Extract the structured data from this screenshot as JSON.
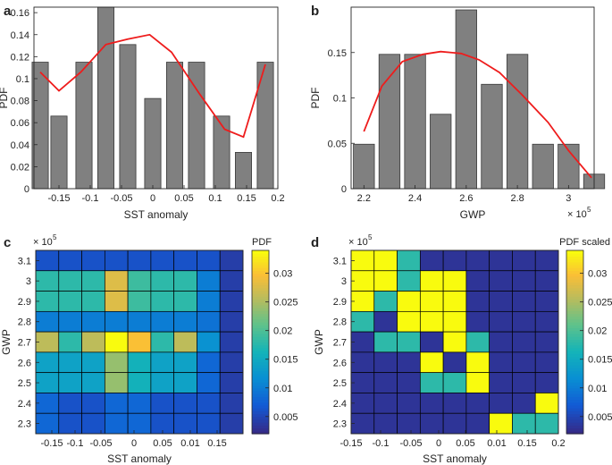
{
  "chart_data": [
    {
      "panel": "a",
      "type": "bar",
      "xlabel": "SST anomaly",
      "ylabel": "PDF",
      "xlim": [
        -0.19,
        0.2
      ],
      "ylim": [
        0,
        0.165
      ],
      "xticks": [
        -0.15,
        -0.1,
        -0.05,
        0,
        0.05,
        0.1,
        0.15,
        0.2
      ],
      "xtick_labels": [
        "-0.15",
        "-0.1",
        "-0.05",
        "0",
        "0.05",
        "0.1",
        "0.15",
        "0.2"
      ],
      "yticks": [
        0,
        0.02,
        0.04,
        0.06,
        0.08,
        0.1,
        0.12,
        0.14,
        0.16
      ],
      "ytick_labels": [
        "0",
        "0.02",
        "0.04",
        "0.06",
        "0.08",
        "0.1",
        "0.12",
        "0.14",
        "0.16"
      ],
      "bar_x": [
        -0.18,
        -0.15,
        -0.11,
        -0.075,
        -0.04,
        0,
        0.035,
        0.07,
        0.11,
        0.145,
        0.18
      ],
      "bar_width": 0.026,
      "values": [
        0.115,
        0.066,
        0.115,
        0.165,
        0.131,
        0.082,
        0.115,
        0.115,
        0.066,
        0.033,
        0.115
      ],
      "line": {
        "x": [
          -0.18,
          -0.15,
          -0.115,
          -0.075,
          -0.04,
          -0.005,
          0.03,
          0.075,
          0.115,
          0.145,
          0.18
        ],
        "y": [
          0.106,
          0.089,
          0.106,
          0.131,
          0.136,
          0.14,
          0.124,
          0.086,
          0.054,
          0.047,
          0.113
        ]
      }
    },
    {
      "panel": "b",
      "type": "bar",
      "xlabel": "GWP",
      "ylabel": "PDF",
      "x_multiplier": "× 10",
      "x_multiplier_exp": "5",
      "xlim": [
        2.15,
        3.1
      ],
      "ylim": [
        0,
        0.2
      ],
      "xticks": [
        2.2,
        2.4,
        2.6,
        2.8,
        3
      ],
      "xtick_labels": [
        "2.2",
        "2.4",
        "2.6",
        "2.8",
        "3"
      ],
      "yticks": [
        0,
        0.05,
        0.1,
        0.15
      ],
      "ytick_labels": [
        "0",
        "0.05",
        "0.1",
        "0.15"
      ],
      "bar_x": [
        2.2,
        2.3,
        2.4,
        2.5,
        2.6,
        2.7,
        2.8,
        2.9,
        3.0,
        3.1
      ],
      "bar_width": 0.082,
      "values": [
        0.049,
        0.148,
        0.148,
        0.082,
        0.197,
        0.115,
        0.148,
        0.049,
        0.049,
        0.016
      ],
      "line": {
        "x": [
          2.2,
          2.27,
          2.35,
          2.43,
          2.5,
          2.58,
          2.65,
          2.73,
          2.82,
          2.92,
          3.0,
          3.09
        ],
        "y": [
          0.063,
          0.113,
          0.14,
          0.148,
          0.151,
          0.149,
          0.142,
          0.128,
          0.103,
          0.073,
          0.042,
          0.012
        ]
      }
    },
    {
      "panel": "c",
      "type": "heatmap",
      "xlabel": "SST anomaly",
      "ylabel": "GWP",
      "y_multiplier": "× 10",
      "y_multiplier_exp": "5",
      "colorbar_title": "PDF",
      "colorbar_ticks": [
        0.005,
        0.01,
        0.015,
        0.02,
        0.025,
        0.03
      ],
      "colorbar_tick_labels": [
        "0.005",
        "0.01",
        "0.015",
        "0.02",
        "0.025",
        "0.03"
      ],
      "clim": [
        0.002,
        0.034
      ],
      "xtick_labels": [
        "-0.15",
        "-0.1",
        "-0.05",
        "0",
        "0.05",
        "0.01",
        "0.15"
      ],
      "ytick_labels": [
        "2.3",
        "2.4",
        "2.5",
        "2.6",
        "2.7",
        "2.8",
        "2.9",
        "3",
        "3.1"
      ],
      "z": [
        [
          0.006,
          0.006,
          0.006,
          0.006,
          0.006,
          0.006,
          0.006,
          0.006,
          0.004
        ],
        [
          0.018,
          0.018,
          0.018,
          0.028,
          0.019,
          0.018,
          0.018,
          0.01,
          0.004
        ],
        [
          0.018,
          0.018,
          0.018,
          0.028,
          0.019,
          0.018,
          0.018,
          0.01,
          0.004
        ],
        [
          0.01,
          0.01,
          0.01,
          0.01,
          0.01,
          0.01,
          0.01,
          0.009,
          0.004
        ],
        [
          0.026,
          0.018,
          0.026,
          0.034,
          0.03,
          0.018,
          0.026,
          0.012,
          0.004
        ],
        [
          0.014,
          0.014,
          0.014,
          0.024,
          0.016,
          0.014,
          0.014,
          0.008,
          0.004
        ],
        [
          0.014,
          0.014,
          0.014,
          0.024,
          0.016,
          0.014,
          0.014,
          0.008,
          0.004
        ],
        [
          0.008,
          0.006,
          0.006,
          0.008,
          0.008,
          0.006,
          0.006,
          0.006,
          0.004
        ],
        [
          0.008,
          0.006,
          0.006,
          0.008,
          0.008,
          0.006,
          0.006,
          0.006,
          0.004
        ]
      ]
    },
    {
      "panel": "d",
      "type": "heatmap",
      "xlabel": "SST anomaly",
      "ylabel": "GWP",
      "y_multiplier": "× 10",
      "y_multiplier_exp": "5",
      "colorbar_title": "PDF scaled",
      "colorbar_ticks": [
        0.005,
        0.01,
        0.015,
        0.02,
        0.025,
        0.03
      ],
      "colorbar_tick_labels": [
        "0.005",
        "0.01",
        "0.015",
        "0.02",
        "0.025",
        "0.03"
      ],
      "clim": [
        0.002,
        0.034
      ],
      "xtick_labels": [
        "-0.15",
        "-0.1",
        "-0.05",
        "0",
        "0.05",
        "0.01",
        "0.15",
        "0.2"
      ],
      "ytick_labels": [
        "2.3",
        "2.4",
        "2.5",
        "2.6",
        "2.7",
        "2.8",
        "2.9",
        "3",
        "3.1"
      ],
      "z": [
        [
          0.034,
          0.034,
          0.018,
          0.003,
          0.003,
          0.003,
          0.003,
          0.003,
          0.003
        ],
        [
          0.034,
          0.034,
          0.018,
          0.034,
          0.034,
          0.003,
          0.003,
          0.003,
          0.003
        ],
        [
          0.034,
          0.018,
          0.034,
          0.034,
          0.034,
          0.003,
          0.003,
          0.003,
          0.003
        ],
        [
          0.018,
          0.003,
          0.034,
          0.034,
          0.034,
          0.003,
          0.003,
          0.003,
          0.003
        ],
        [
          0.003,
          0.018,
          0.018,
          0.003,
          0.034,
          0.018,
          0.003,
          0.003,
          0.003
        ],
        [
          0.003,
          0.003,
          0.003,
          0.034,
          0.003,
          0.034,
          0.003,
          0.003,
          0.003
        ],
        [
          0.003,
          0.003,
          0.003,
          0.018,
          0.018,
          0.034,
          0.003,
          0.003,
          0.003
        ],
        [
          0.003,
          0.003,
          0.003,
          0.003,
          0.003,
          0.003,
          0.003,
          0.003,
          0.034
        ],
        [
          0.003,
          0.003,
          0.003,
          0.003,
          0.003,
          0.003,
          0.034,
          0.018,
          0.018
        ]
      ]
    }
  ],
  "panel_labels": [
    "a",
    "b",
    "c",
    "d"
  ],
  "colors": {
    "bar": "#808080",
    "bar_edge": "#3a3a3a",
    "line": "#ee1c1c"
  }
}
